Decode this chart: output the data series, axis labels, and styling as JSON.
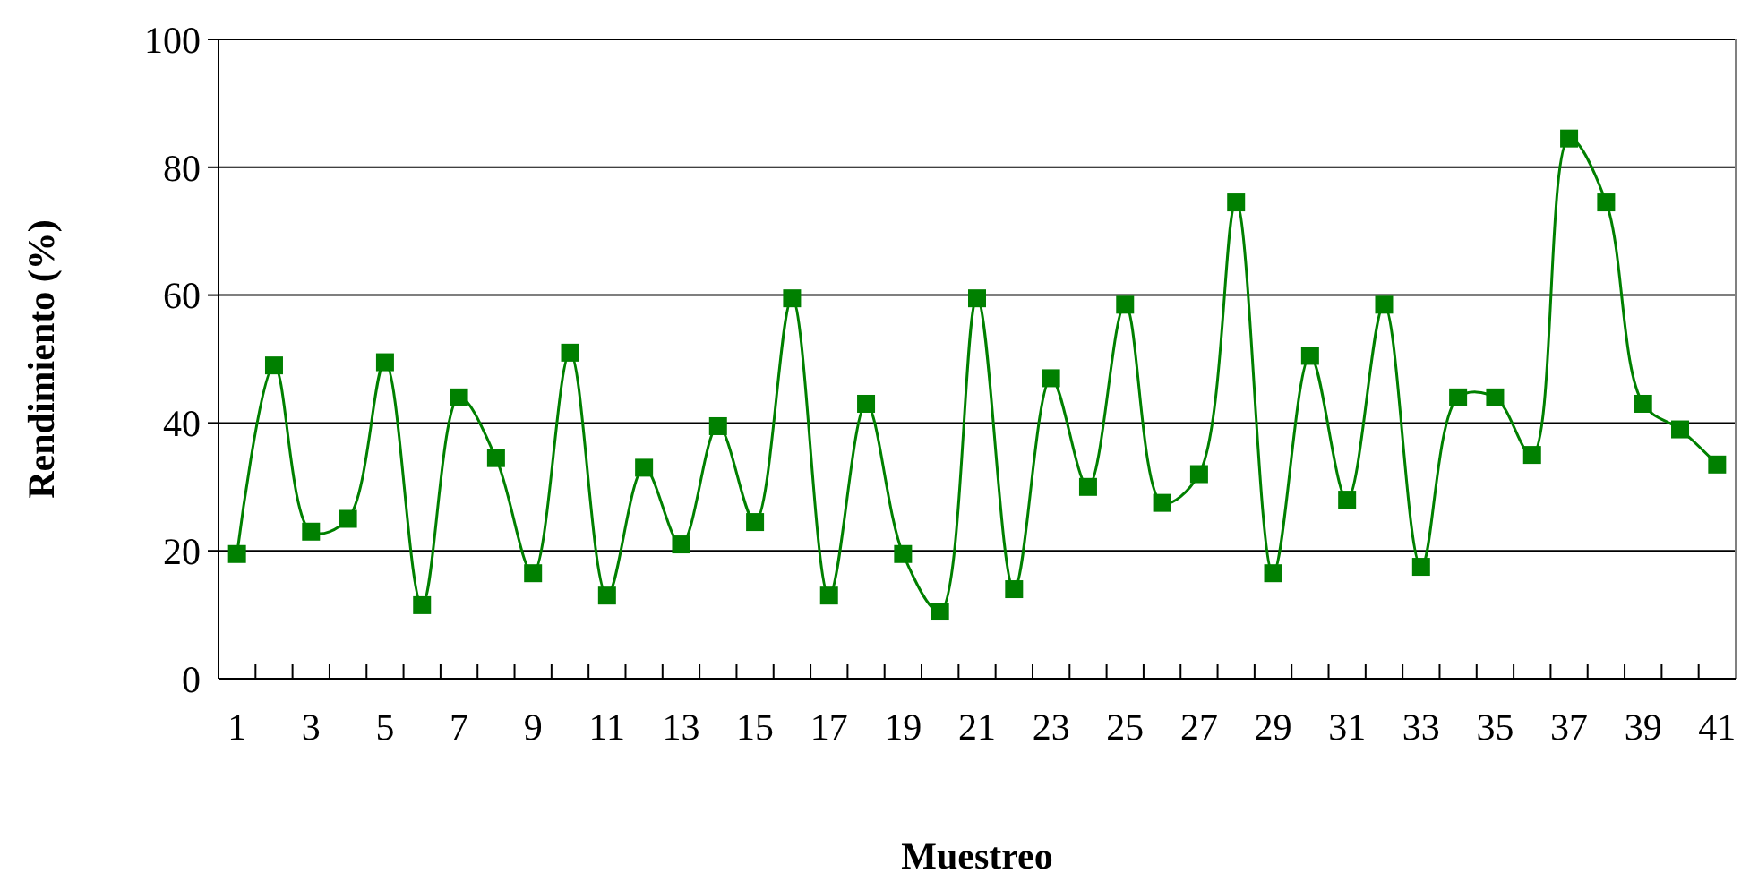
{
  "chart_data": {
    "type": "line",
    "xlabel": "Muestreo",
    "ylabel": "Rendimiento (%)",
    "x": [
      1,
      2,
      3,
      4,
      5,
      6,
      7,
      8,
      9,
      10,
      11,
      12,
      13,
      14,
      15,
      16,
      17,
      18,
      19,
      20,
      21,
      22,
      23,
      24,
      25,
      26,
      27,
      28,
      29,
      30,
      31,
      32,
      33,
      34,
      35,
      36,
      37,
      38,
      39,
      40,
      41
    ],
    "xlim": [
      0.5,
      41.5
    ],
    "xticks": [
      1,
      {
        "value": 1.5,
        "label": null
      },
      {
        "value": 2.5,
        "label": null
      },
      3,
      {
        "value": 3.5,
        "label": null
      },
      {
        "value": 4.5,
        "label": null
      },
      5,
      {
        "value": 5.5,
        "label": null
      },
      {
        "value": 6.5,
        "label": null
      },
      7,
      {
        "value": 7.5,
        "label": null
      },
      {
        "value": 8.5,
        "label": null
      },
      9,
      {
        "value": 9.5,
        "label": null
      },
      {
        "value": 10.5,
        "label": null
      },
      11,
      {
        "value": 11.5,
        "label": null
      },
      {
        "value": 12.5,
        "label": null
      },
      13,
      {
        "value": 13.5,
        "label": null
      },
      {
        "value": 14.5,
        "label": null
      },
      15,
      {
        "value": 15.5,
        "label": null
      },
      {
        "value": 16.5,
        "label": null
      },
      17,
      {
        "value": 17.5,
        "label": null
      },
      {
        "value": 18.5,
        "label": null
      },
      19,
      {
        "value": 19.5,
        "label": null
      },
      {
        "value": 20.5,
        "label": null
      },
      21,
      {
        "value": 21.5,
        "label": null
      },
      {
        "value": 22.5,
        "label": null
      },
      23,
      {
        "value": 23.5,
        "label": null
      },
      {
        "value": 24.5,
        "label": null
      },
      25,
      {
        "value": 25.5,
        "label": null
      },
      {
        "value": 26.5,
        "label": null
      },
      27,
      {
        "value": 27.5,
        "label": null
      },
      {
        "value": 28.5,
        "label": null
      },
      29,
      {
        "value": 29.5,
        "label": null
      },
      {
        "value": 30.5,
        "label": null
      },
      31,
      {
        "value": 31.5,
        "label": null
      },
      {
        "value": 32.5,
        "label": null
      },
      33,
      {
        "value": 33.5,
        "label": null
      },
      {
        "value": 34.5,
        "label": null
      },
      35,
      {
        "value": 35.5,
        "label": null
      },
      {
        "value": 36.5,
        "label": null
      },
      37,
      {
        "value": 37.5,
        "label": null
      },
      {
        "value": 38.5,
        "label": null
      },
      39,
      {
        "value": 39.5,
        "label": null
      },
      {
        "value": 40.5,
        "label": null
      },
      41
    ],
    "series": [
      {
        "color": "#008000",
        "values": [
          19.5,
          49,
          23,
          25,
          49.5,
          11.5,
          44,
          34.5,
          16.5,
          51,
          13,
          33,
          21,
          39.5,
          24.5,
          59.5,
          13,
          43,
          19.5,
          10.5,
          59.5,
          14,
          47,
          30,
          58.5,
          27.5,
          32,
          74.5,
          16.5,
          50.5,
          28,
          58.5,
          17.5,
          44,
          44,
          35,
          84.5,
          74.5,
          43,
          39,
          33.5
        ]
      }
    ],
    "ylim": [
      0,
      100
    ],
    "yticks": [
      0,
      20,
      40,
      60,
      80,
      100
    ],
    "grid": "y",
    "marker": "square"
  }
}
